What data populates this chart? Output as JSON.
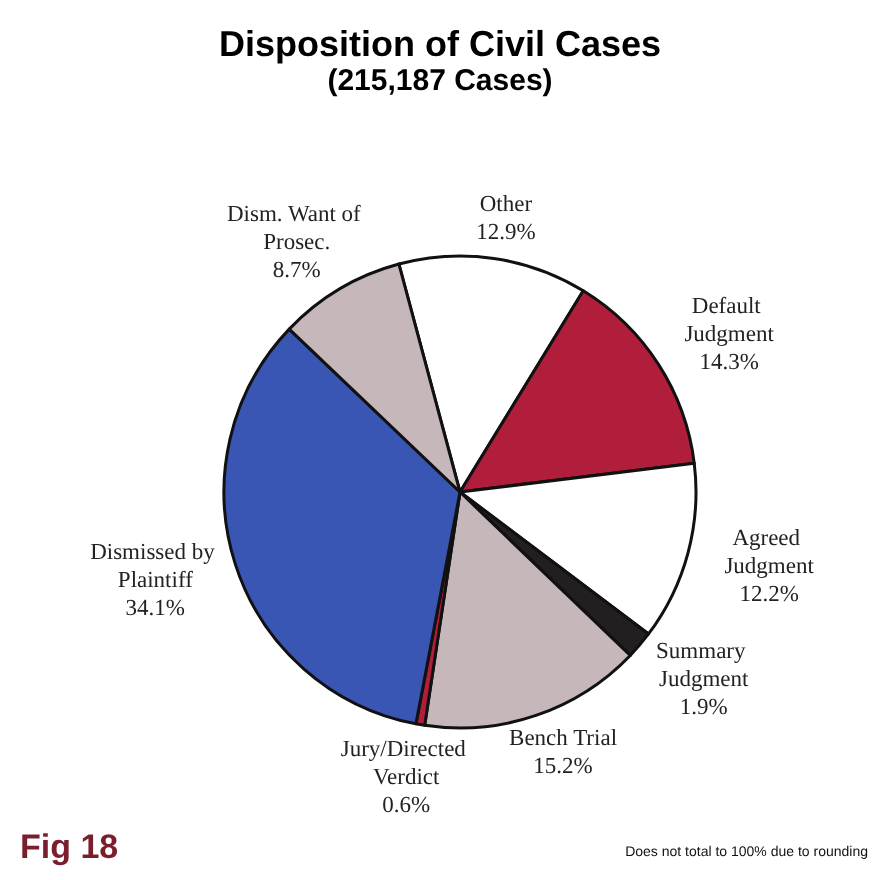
{
  "chart_data": {
    "type": "pie",
    "title": "Disposition of Civil Cases",
    "subtitle": "(215,187 Cases)",
    "categories": [
      "Other",
      "Default Judgment",
      "Agreed Judgment",
      "Summary Judgment",
      "Bench Trial",
      "Jury/Directed Verdict",
      "Dismissed by Plaintiff",
      "Dism. Want of Prosec."
    ],
    "values": [
      12.9,
      14.3,
      12.2,
      1.9,
      15.2,
      0.6,
      34.1,
      8.7
    ],
    "colors": [
      "#ffffff",
      "#b01e3c",
      "#ffffff",
      "#231f20",
      "#c6b7ba",
      "#b01e3c",
      "#3a56b4",
      "#c6b7ba"
    ],
    "value_labels": [
      "12.9%",
      "14.3%",
      "12.2%",
      "1.9%",
      "15.2%",
      "0.6%",
      "34.1%",
      "8.7%"
    ],
    "legend": false,
    "annotations": [
      "Fig 18",
      "Does not total to 100% due to rounding"
    ]
  }
}
